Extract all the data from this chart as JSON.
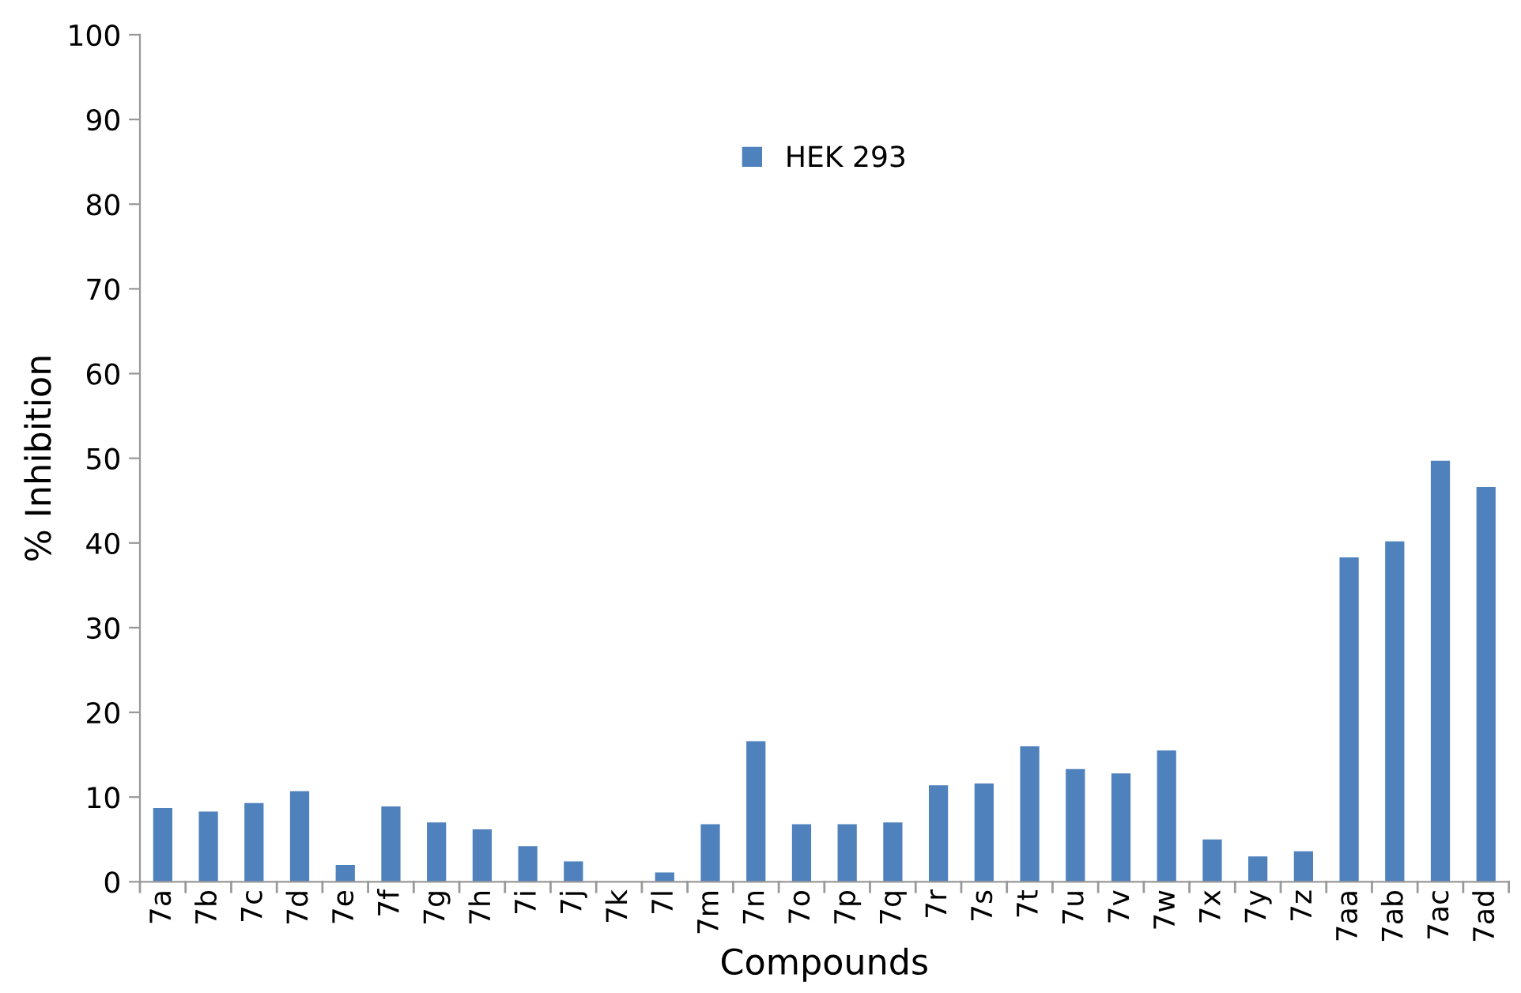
{
  "chart_data": {
    "type": "bar",
    "xlabel": "Compounds",
    "ylabel": "% Inhibition",
    "categories": [
      "7a",
      "7b",
      "7c",
      "7d",
      "7e",
      "7f",
      "7g",
      "7h",
      "7i",
      "7j",
      "7k",
      "7l",
      "7m",
      "7n",
      "7o",
      "7p",
      "7q",
      "7r",
      "7s",
      "7t",
      "7u",
      "7v",
      "7w",
      "7x",
      "7y",
      "7z",
      "7aa",
      "7ab",
      "7ac",
      "7ad"
    ],
    "series": [
      {
        "name": "HEK 293",
        "color": "#4f81bd",
        "values": [
          8.7,
          8.3,
          9.3,
          10.7,
          2.0,
          8.9,
          7.0,
          6.2,
          4.2,
          2.4,
          0,
          1.1,
          6.8,
          16.6,
          6.8,
          6.8,
          7.0,
          11.4,
          11.6,
          16.0,
          13.3,
          12.8,
          15.5,
          5.0,
          3.0,
          3.6,
          38.3,
          40.2,
          49.7,
          46.6
        ]
      }
    ],
    "ylim": [
      0,
      100
    ],
    "yticks": [
      0,
      10,
      20,
      30,
      40,
      50,
      60,
      70,
      80,
      90,
      100
    ],
    "grid": false,
    "legend": "top"
  }
}
